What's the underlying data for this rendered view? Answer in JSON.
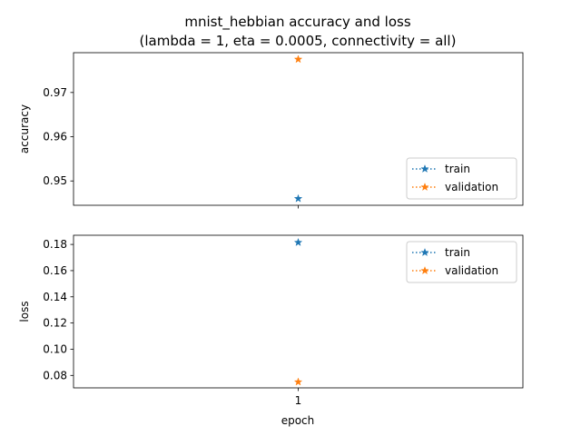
{
  "title_line1": "mnist_hebbian accuracy and loss",
  "title_line2": "(lambda = 1, eta = 0.0005, connectivity = all)",
  "xlabel": "epoch",
  "colors": {
    "train": "#1f77b4",
    "validation": "#ff7f0e"
  },
  "chart_data": [
    {
      "type": "line",
      "ylabel": "accuracy",
      "x": [
        1
      ],
      "xticks": [
        1
      ],
      "xlim": [
        0.0,
        2.0
      ],
      "ylim": [
        0.9445,
        0.979
      ],
      "yticks": [
        0.95,
        0.96,
        0.97
      ],
      "ytick_labels": [
        "0.95",
        "0.96",
        "0.97"
      ],
      "legend_position": "lower-right",
      "series": [
        {
          "name": "train",
          "values": [
            0.946
          ]
        },
        {
          "name": "validation",
          "values": [
            0.9775
          ]
        }
      ]
    },
    {
      "type": "line",
      "ylabel": "loss",
      "x": [
        1
      ],
      "xticks": [
        1
      ],
      "xtick_labels": [
        "1"
      ],
      "xlim": [
        0.0,
        2.0
      ],
      "ylim": [
        0.0705,
        0.187
      ],
      "yticks": [
        0.08,
        0.1,
        0.12,
        0.14,
        0.16,
        0.18
      ],
      "ytick_labels": [
        "0.08",
        "0.10",
        "0.12",
        "0.14",
        "0.16",
        "0.18"
      ],
      "legend_position": "upper-right",
      "series": [
        {
          "name": "train",
          "values": [
            0.1815
          ]
        },
        {
          "name": "validation",
          "values": [
            0.075
          ]
        }
      ]
    }
  ]
}
